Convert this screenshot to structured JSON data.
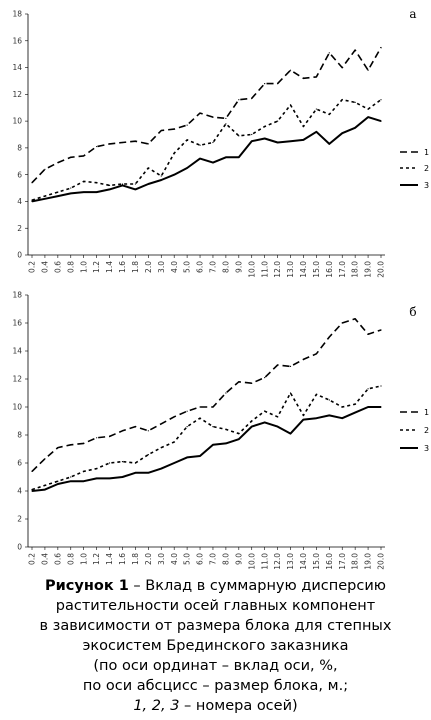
{
  "chart_data": [
    {
      "type": "line",
      "panel_label": "а",
      "categories": [
        "0.2",
        "0.4",
        "0.6",
        "0.8",
        "1.0",
        "1.2",
        "1.4",
        "1.6",
        "1.8",
        "2.0",
        "3.0",
        "4.0",
        "5.0",
        "6.0",
        "7.0",
        "8.0",
        "9.0",
        "10.0",
        "11.0",
        "12.0",
        "13.0",
        "14.0",
        "15.0",
        "16.0",
        "17.0",
        "18.0",
        "19.0",
        "20.0"
      ],
      "ylim": [
        0,
        18
      ],
      "yticks": [
        0,
        2,
        4,
        6,
        8,
        10,
        12,
        14,
        16,
        18
      ],
      "grid": false,
      "legend": "right",
      "series": [
        {
          "name": "1",
          "dash": "long",
          "values": [
            5.4,
            6.4,
            6.9,
            7.3,
            7.4,
            8.1,
            8.3,
            8.4,
            8.5,
            8.3,
            9.3,
            9.4,
            9.7,
            10.6,
            10.3,
            10.2,
            11.6,
            11.7,
            12.8,
            12.8,
            13.8,
            13.2,
            13.3,
            15.1,
            14.0,
            15.3,
            13.8,
            15.5
          ]
        },
        {
          "name": "2",
          "dash": "short",
          "values": [
            4.1,
            4.4,
            4.7,
            5.0,
            5.5,
            5.4,
            5.2,
            5.3,
            5.3,
            6.5,
            5.9,
            7.6,
            8.6,
            8.2,
            8.4,
            9.8,
            8.9,
            9.0,
            9.6,
            10.0,
            11.2,
            9.6,
            10.9,
            10.5,
            11.6,
            11.4,
            10.9,
            11.6
          ]
        },
        {
          "name": "3",
          "dash": "solid",
          "values": [
            4.0,
            4.2,
            4.4,
            4.6,
            4.7,
            4.7,
            4.9,
            5.2,
            4.9,
            5.3,
            5.6,
            6.0,
            6.5,
            7.2,
            6.9,
            7.3,
            7.3,
            8.5,
            8.7,
            8.4,
            8.5,
            8.6,
            9.2,
            8.3,
            9.1,
            9.5,
            10.3,
            10.0
          ]
        }
      ]
    },
    {
      "type": "line",
      "panel_label": "б",
      "categories": [
        "0.2",
        "0.4",
        "0.6",
        "0.8",
        "1.0",
        "1.2",
        "1.4",
        "1.6",
        "1.8",
        "2.0",
        "3.0",
        "4.0",
        "5.0",
        "6.0",
        "7.0",
        "8.0",
        "9.0",
        "10.0",
        "11.0",
        "12.0",
        "13.0",
        "14.0",
        "15.0",
        "16.0",
        "17.0",
        "18.0",
        "19.0",
        "20.0"
      ],
      "ylim": [
        0,
        18
      ],
      "yticks": [
        0,
        2,
        4,
        6,
        8,
        10,
        12,
        14,
        16,
        18
      ],
      "grid": false,
      "legend": "right",
      "series": [
        {
          "name": "1",
          "dash": "long",
          "values": [
            5.4,
            6.3,
            7.1,
            7.3,
            7.4,
            7.8,
            7.9,
            8.3,
            8.6,
            8.3,
            8.8,
            9.3,
            9.7,
            10.0,
            10.0,
            11.0,
            11.8,
            11.7,
            12.1,
            13.0,
            12.9,
            13.4,
            13.8,
            15.0,
            16.0,
            16.3,
            15.2,
            15.5
          ]
        },
        {
          "name": "2",
          "dash": "short",
          "values": [
            4.1,
            4.4,
            4.7,
            5.0,
            5.4,
            5.6,
            6.0,
            6.1,
            6.0,
            6.6,
            7.1,
            7.5,
            8.6,
            9.2,
            8.6,
            8.4,
            8.1,
            9.0,
            9.7,
            9.3,
            11.0,
            9.4,
            10.9,
            10.5,
            10.0,
            10.2,
            11.3,
            11.5
          ]
        },
        {
          "name": "3",
          "dash": "solid",
          "values": [
            4.0,
            4.1,
            4.5,
            4.7,
            4.7,
            4.9,
            4.9,
            5.0,
            5.3,
            5.3,
            5.6,
            6.0,
            6.4,
            6.5,
            7.3,
            7.4,
            7.7,
            8.6,
            8.9,
            8.6,
            8.1,
            9.1,
            9.2,
            9.4,
            9.2,
            9.6,
            10.0,
            10.0
          ]
        }
      ]
    }
  ],
  "caption": {
    "figure_label": "Рисунок 1",
    "lines": [
      " – Вклад в суммарную дисперсию",
      "растительности осей главных компонент",
      "в зависимости от размера блока для степных",
      "экосистем Брединского заказника",
      "(по оси ординат – вклад оси, %,",
      "по оси абсцисс – размер блока, м.;"
    ],
    "last_line_italic": "1, 2, 3",
    "last_line_rest": " – номера осей)"
  },
  "colors": {
    "line": "#000000",
    "axis": "#000000",
    "text": "#333333"
  }
}
